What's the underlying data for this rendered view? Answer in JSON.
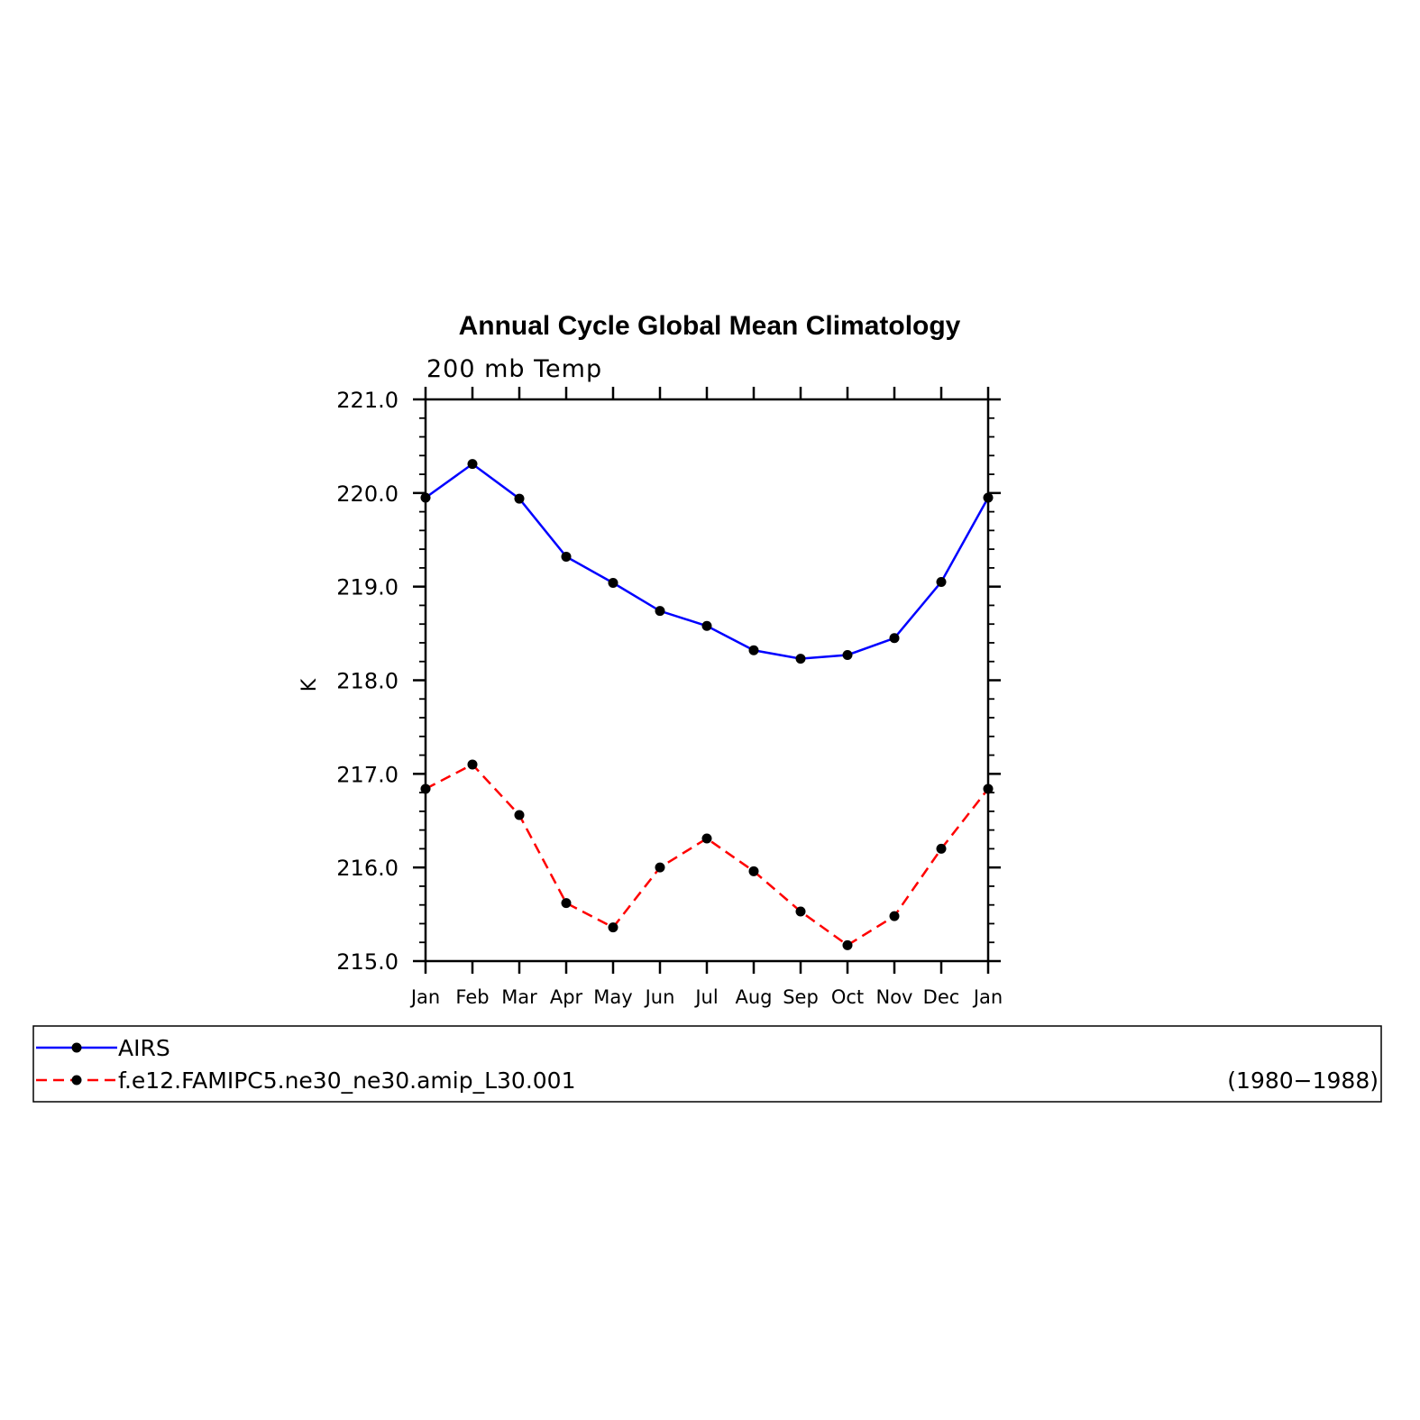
{
  "chart_data": {
    "type": "line",
    "title": "Annual Cycle Global Mean Climatology",
    "subtitle": "200 mb Temp",
    "xlabel": "",
    "ylabel": "K",
    "categories": [
      "Jan",
      "Feb",
      "Mar",
      "Apr",
      "May",
      "Jun",
      "Jul",
      "Aug",
      "Sep",
      "Oct",
      "Nov",
      "Dec",
      "Jan"
    ],
    "ylim": [
      215.0,
      221.0
    ],
    "yticks": [
      "215.0",
      "216.0",
      "217.0",
      "218.0",
      "219.0",
      "220.0",
      "221.0"
    ],
    "grid": false,
    "legend_position": "bottom",
    "series": [
      {
        "name": "AIRS",
        "color": "#0000ff",
        "dash": "solid",
        "values": [
          219.95,
          220.31,
          219.94,
          219.32,
          219.04,
          218.74,
          218.58,
          218.32,
          218.23,
          218.27,
          218.45,
          219.05,
          219.95
        ]
      },
      {
        "name": "f.e12.FAMIPC5.ne30_ne30.amip_L30.001",
        "color": "#ff0000",
        "dash": "dashed",
        "values": [
          216.84,
          217.1,
          216.56,
          215.62,
          215.36,
          216.0,
          216.31,
          215.96,
          215.53,
          215.17,
          215.48,
          216.2,
          216.84
        ]
      }
    ],
    "annotation": "(1980−1988)"
  }
}
